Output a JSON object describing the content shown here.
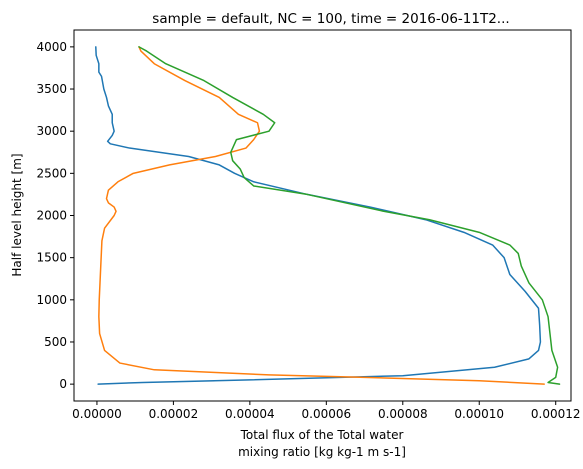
{
  "chart_data": {
    "type": "line",
    "title": "sample = default, NC = 100, time = 2016-06-11T2...",
    "xlabel_lines": [
      "Total flux of the Total water",
      "mixing ratio [kg kg-1 m s-1]"
    ],
    "ylabel": "Half level height [m]",
    "xlim": [
      -6e-06,
      0.000124
    ],
    "ylim": [
      -200,
      4200
    ],
    "xticks": [
      0,
      2e-05,
      4e-05,
      6e-05,
      8e-05,
      0.0001,
      0.00012
    ],
    "xtick_labels": [
      "0.00000",
      "0.00002",
      "0.00004",
      "0.00006",
      "0.00008",
      "0.00010",
      "0.00012"
    ],
    "yticks": [
      0,
      500,
      1000,
      1500,
      2000,
      2500,
      3000,
      3500,
      4000
    ],
    "ytick_labels": [
      "0",
      "500",
      "1000",
      "1500",
      "2000",
      "2500",
      "3000",
      "3500",
      "4000"
    ],
    "grid": false,
    "legend": "none",
    "series": [
      {
        "color": "#1f77b4",
        "points": [
          [
            3e-07,
            0
          ],
          [
            1.2e-05,
            20
          ],
          [
            4e-05,
            50
          ],
          [
            8e-05,
            100
          ],
          [
            0.000104,
            200
          ],
          [
            0.000113,
            300
          ],
          [
            0.0001155,
            400
          ],
          [
            0.000116,
            500
          ],
          [
            0.0001158,
            700
          ],
          [
            0.0001155,
            900
          ],
          [
            0.000112,
            1100
          ],
          [
            0.000108,
            1300
          ],
          [
            0.0001065,
            1500
          ],
          [
            0.0001035,
            1650
          ],
          [
            9.6e-05,
            1800
          ],
          [
            8.6e-05,
            1950
          ],
          [
            7.15e-05,
            2100
          ],
          [
            5.5e-05,
            2250
          ],
          [
            4.1e-05,
            2400
          ],
          [
            3.6e-05,
            2500
          ],
          [
            3.2e-05,
            2600
          ],
          [
            2.4e-05,
            2700
          ],
          [
            8.5e-06,
            2800
          ],
          [
            3.5e-06,
            2850
          ],
          [
            2.8e-06,
            2880
          ],
          [
            4e-06,
            2950
          ],
          [
            4.5e-06,
            3000
          ],
          [
            4e-06,
            3100
          ],
          [
            4e-06,
            3200
          ],
          [
            3e-06,
            3300
          ],
          [
            2.5e-06,
            3400
          ],
          [
            1.8e-06,
            3500
          ],
          [
            1.2e-06,
            3650
          ],
          [
            5e-07,
            3700
          ],
          [
            5e-07,
            3800
          ],
          [
            -2e-07,
            3900
          ],
          [
            -3e-07,
            4000
          ]
        ]
      },
      {
        "color": "#ff7f0e",
        "points": [
          [
            0.000117,
            0
          ],
          [
            0.0001,
            40
          ],
          [
            7e-05,
            80
          ],
          [
            4.5e-05,
            110
          ],
          [
            1.5e-05,
            170
          ],
          [
            6e-06,
            250
          ],
          [
            2e-06,
            400
          ],
          [
            7e-07,
            600
          ],
          [
            5e-07,
            800
          ],
          [
            6e-07,
            1000
          ],
          [
            8e-07,
            1200
          ],
          [
            1e-06,
            1400
          ],
          [
            1.2e-06,
            1600
          ],
          [
            1.3e-06,
            1700
          ],
          [
            2e-06,
            1850
          ],
          [
            4.5e-06,
            2000
          ],
          [
            5e-06,
            2050
          ],
          [
            4.5e-06,
            2100
          ],
          [
            3e-06,
            2150
          ],
          [
            2.5e-06,
            2200
          ],
          [
            3e-06,
            2300
          ],
          [
            5.5e-06,
            2400
          ],
          [
            9.5e-06,
            2500
          ],
          [
            1.9e-05,
            2600
          ],
          [
            3.1e-05,
            2700
          ],
          [
            3.9e-05,
            2800
          ],
          [
            4.1e-05,
            2900
          ],
          [
            4.25e-05,
            3000
          ],
          [
            4.2e-05,
            3100
          ],
          [
            3.7e-05,
            3200
          ],
          [
            3.2e-05,
            3400
          ],
          [
            2.3e-05,
            3600
          ],
          [
            1.5e-05,
            3800
          ],
          [
            1.15e-05,
            3950
          ],
          [
            1.1e-05,
            4000
          ]
        ]
      },
      {
        "color": "#2ca02c",
        "points": [
          [
            0.000121,
            0
          ],
          [
            0.000118,
            20
          ],
          [
            0.00012,
            80
          ],
          [
            0.0001205,
            200
          ],
          [
            0.000119,
            400
          ],
          [
            0.0001185,
            600
          ],
          [
            0.000118,
            800
          ],
          [
            0.0001165,
            1000
          ],
          [
            0.000113,
            1200
          ],
          [
            0.000111,
            1400
          ],
          [
            0.0001102,
            1550
          ],
          [
            0.000108,
            1650
          ],
          [
            0.0001,
            1800
          ],
          [
            8.7e-05,
            1950
          ],
          [
            7.5e-05,
            2050
          ],
          [
            5.5e-05,
            2250
          ],
          [
            4.1e-05,
            2350
          ],
          [
            3.85e-05,
            2450
          ],
          [
            3.75e-05,
            2550
          ],
          [
            3.55e-05,
            2650
          ],
          [
            3.5e-05,
            2750
          ],
          [
            3.65e-05,
            2900
          ],
          [
            4.5e-05,
            3000
          ],
          [
            4.65e-05,
            3100
          ],
          [
            4.35e-05,
            3200
          ],
          [
            3.55e-05,
            3400
          ],
          [
            2.8e-05,
            3600
          ],
          [
            1.8e-05,
            3800
          ],
          [
            1.3e-05,
            3950
          ],
          [
            1.1e-05,
            4000
          ]
        ]
      }
    ]
  }
}
